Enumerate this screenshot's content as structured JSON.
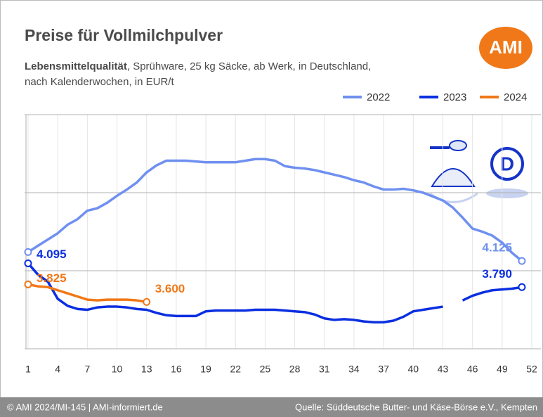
{
  "chart_data": {
    "type": "line",
    "title": "Preise für Vollmilchpulver",
    "subtitle": [
      "Lebensmittelqualität",
      ", Sprühware, 25 kg Säcke, ab Werk, in Deutschland,",
      "nach Kalenderwochen, in EUR/t"
    ],
    "logo": "AMI",
    "badge": "D",
    "footer_left": "© AMI 2024/MI-145 | AMI-informiert.de",
    "footer_right": "Quelle: Süddeutsche Butter- und Käse-Börse e.V., Kempten",
    "x": [
      1,
      2,
      3,
      4,
      5,
      6,
      7,
      8,
      9,
      10,
      11,
      12,
      13,
      14,
      15,
      16,
      17,
      18,
      19,
      20,
      21,
      22,
      23,
      24,
      25,
      26,
      27,
      28,
      29,
      30,
      31,
      32,
      33,
      34,
      35,
      36,
      37,
      38,
      39,
      40,
      41,
      42,
      43,
      44,
      45,
      46,
      47,
      48,
      49,
      50,
      51
    ],
    "xlim": [
      1,
      52
    ],
    "xticks": [
      1,
      4,
      7,
      10,
      13,
      16,
      19,
      22,
      25,
      28,
      31,
      34,
      37,
      40,
      43,
      46,
      49,
      52
    ],
    "ylim": [
      3000,
      6000
    ],
    "yticks": [
      3000,
      4000,
      5000,
      6000
    ],
    "grid": true,
    "legend": "top-right",
    "series": [
      {
        "name": "2022",
        "color": "#6f90f0",
        "values": [
          4240,
          4320,
          4400,
          4480,
          4590,
          4660,
          4770,
          4800,
          4870,
          4960,
          5040,
          5130,
          5260,
          5350,
          5410,
          5410,
          5410,
          5400,
          5390,
          5390,
          5390,
          5390,
          5410,
          5430,
          5430,
          5410,
          5340,
          5320,
          5310,
          5290,
          5260,
          5230,
          5200,
          5160,
          5130,
          5080,
          5040,
          5040,
          5050,
          5030,
          5000,
          4950,
          4900,
          4810,
          4680,
          4540,
          4500,
          4450,
          4360,
          4230,
          4125
        ],
        "value_labels": [
          null,
          null,
          null,
          null,
          null,
          null,
          null,
          null,
          null,
          null,
          null,
          null,
          null,
          null,
          null,
          null,
          null,
          null,
          null,
          null,
          null,
          null,
          null,
          null,
          null,
          null,
          null,
          null,
          null,
          null,
          null,
          null,
          null,
          null,
          null,
          null,
          null,
          null,
          null,
          null,
          null,
          null,
          null,
          null,
          null,
          null,
          null,
          null,
          null,
          null,
          "4.125"
        ]
      },
      {
        "name": "2023",
        "color": "#0b2fe0",
        "values": [
          4095,
          3950,
          3860,
          3640,
          3550,
          3510,
          3500,
          3530,
          3540,
          3540,
          3530,
          3510,
          3500,
          3460,
          3430,
          3420,
          3420,
          3420,
          3480,
          3490,
          3490,
          3490,
          3490,
          3500,
          3500,
          3500,
          3490,
          3480,
          3470,
          3440,
          3390,
          3370,
          3380,
          3370,
          3350,
          3340,
          3340,
          3360,
          3410,
          3480,
          3500,
          3520,
          3540,
          null,
          3620,
          3680,
          3720,
          3750,
          3760,
          3770,
          3790
        ],
        "value_labels": [
          "4.095",
          null,
          null,
          null,
          null,
          null,
          null,
          null,
          null,
          null,
          null,
          null,
          null,
          null,
          null,
          null,
          null,
          null,
          null,
          null,
          null,
          null,
          null,
          null,
          null,
          null,
          null,
          null,
          null,
          null,
          null,
          null,
          null,
          null,
          null,
          null,
          null,
          null,
          null,
          null,
          null,
          null,
          null,
          null,
          null,
          null,
          null,
          null,
          null,
          null,
          "3.790"
        ]
      },
      {
        "name": "2024",
        "color": "#f07818",
        "values": [
          3825,
          3800,
          3790,
          3750,
          3710,
          3670,
          3630,
          3620,
          3630,
          3630,
          3630,
          3620,
          3600,
          null,
          null,
          null,
          null,
          null,
          null,
          null,
          null,
          null,
          null,
          null,
          null,
          null,
          null,
          null,
          null,
          null,
          null,
          null,
          null,
          null,
          null,
          null,
          null,
          null,
          null,
          null,
          null,
          null,
          null,
          null,
          null,
          null,
          null,
          null,
          null,
          null,
          null
        ],
        "value_labels": [
          "3.825",
          null,
          null,
          null,
          null,
          null,
          null,
          null,
          null,
          null,
          null,
          null,
          "3.600",
          null,
          null,
          null,
          null,
          null,
          null,
          null,
          null,
          null,
          null,
          null,
          null,
          null,
          null,
          null,
          null,
          null,
          null,
          null,
          null,
          null,
          null,
          null,
          null,
          null,
          null,
          null,
          null,
          null,
          null,
          null,
          null,
          null,
          null,
          null,
          null,
          null,
          null
        ]
      }
    ]
  }
}
